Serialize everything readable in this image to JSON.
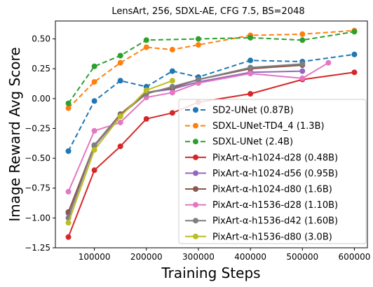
{
  "chart_data": {
    "type": "line",
    "title": "LensArt, 256, SDXL-AE, CFG 7.5, BS=2048",
    "xlabel": "Training Steps",
    "ylabel": "Image Reward Avg Score",
    "xlim": [
      25000,
      625000
    ],
    "ylim": [
      -1.25,
      0.65
    ],
    "x_ticks": [
      100000,
      200000,
      300000,
      400000,
      500000,
      600000
    ],
    "x_tick_labels": [
      "100000",
      "200000",
      "300000",
      "400000",
      "500000",
      "600000"
    ],
    "y_ticks": [
      -1.25,
      -1.0,
      -0.75,
      -0.5,
      -0.25,
      0.0,
      0.25,
      0.5
    ],
    "y_tick_labels": [
      "−1.25",
      "−1.00",
      "−0.75",
      "−0.50",
      "−0.25",
      "0.00",
      "0.25",
      "0.50"
    ],
    "grid": false,
    "legend_position": "lower-right",
    "series": [
      {
        "name": "SD2-UNet (0.87B)",
        "color": "#1f77b4",
        "dash": true,
        "x": [
          50000,
          100000,
          150000,
          200000,
          250000,
          300000,
          400000,
          500000,
          600000
        ],
        "values": [
          -0.44,
          -0.02,
          0.15,
          0.1,
          0.23,
          0.18,
          0.32,
          0.31,
          0.37
        ]
      },
      {
        "name": "SDXL-UNet-TD4_4 (1.3B)",
        "color": "#ff7f0e",
        "dash": true,
        "x": [
          50000,
          100000,
          150000,
          200000,
          250000,
          300000,
          400000,
          500000,
          600000
        ],
        "values": [
          -0.08,
          0.14,
          0.3,
          0.43,
          0.41,
          0.45,
          0.53,
          0.54,
          0.57
        ]
      },
      {
        "name": "SDXL-UNet (2.4B)",
        "color": "#2ca02c",
        "dash": true,
        "x": [
          50000,
          100000,
          150000,
          200000,
          300000,
          400000,
          500000,
          600000
        ],
        "values": [
          -0.04,
          0.27,
          0.36,
          0.49,
          0.5,
          0.51,
          0.49,
          0.56
        ]
      },
      {
        "name": "PixArt-α-h1024-d28 (0.48B)",
        "color": "#d62728",
        "dash": false,
        "x": [
          50000,
          100000,
          150000,
          200000,
          250000,
          300000,
          400000,
          500000,
          600000
        ],
        "values": [
          -1.16,
          -0.6,
          -0.4,
          -0.17,
          -0.12,
          -0.03,
          0.04,
          0.16,
          0.22
        ]
      },
      {
        "name": "PixArt-α-h1024-d56 (0.95B)",
        "color": "#9467bd",
        "dash": false,
        "x": [
          50000,
          100000,
          150000,
          200000,
          250000,
          300000,
          400000,
          500000
        ],
        "values": [
          -0.96,
          -0.4,
          -0.14,
          0.05,
          0.08,
          0.14,
          0.22,
          0.23
        ]
      },
      {
        "name": "PixArt-α-h1024-d80 (1.6B)",
        "color": "#8c564b",
        "dash": false,
        "x": [
          50000,
          100000,
          150000,
          200000,
          250000,
          300000,
          400000,
          500000
        ],
        "values": [
          -0.95,
          -0.39,
          -0.13,
          0.05,
          0.09,
          0.16,
          0.25,
          0.28
        ]
      },
      {
        "name": "PixArt-α-h1536-d28 (1.10B)",
        "color": "#e377c2",
        "dash": false,
        "x": [
          50000,
          100000,
          150000,
          200000,
          250000,
          300000,
          400000,
          500000,
          550000
        ],
        "values": [
          -0.78,
          -0.27,
          -0.2,
          0.01,
          0.05,
          0.13,
          0.21,
          0.17,
          0.3
        ]
      },
      {
        "name": "PixArt-α-h1536-d42 (1.60B)",
        "color": "#7f7f7f",
        "dash": false,
        "x": [
          50000,
          100000,
          150000,
          200000,
          250000,
          300000,
          400000,
          500000
        ],
        "values": [
          -1.0,
          -0.39,
          -0.14,
          0.04,
          0.1,
          0.16,
          0.26,
          0.29
        ]
      },
      {
        "name": "PixArt-α-h1536-d80 (3.0B)",
        "color": "#bcbd22",
        "dash": false,
        "x": [
          50000,
          100000,
          150000,
          200000,
          250000
        ],
        "values": [
          -1.04,
          -0.43,
          -0.15,
          0.07,
          0.15
        ]
      }
    ]
  }
}
